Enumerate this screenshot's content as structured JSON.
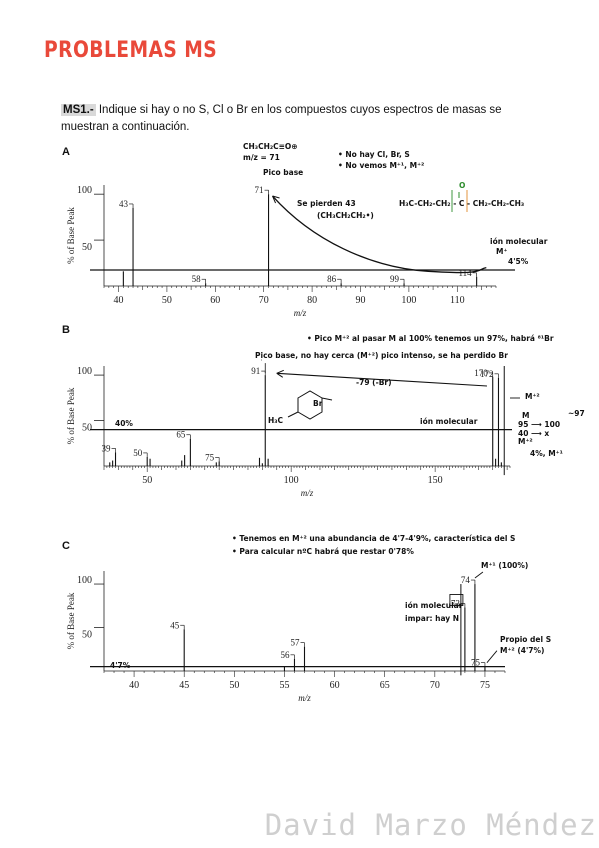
{
  "page": {
    "title": "PROBLEMAS MS",
    "exercise_tag": "MS1.-",
    "exercise_text": " Indique si hay o no S, Cl o Br en los compuestos cuyos espectros de masas se muestran a continuación.",
    "footer": "David Marzo Méndez"
  },
  "colors": {
    "title": "#e9493a",
    "annotation_green": "#2c8c2c",
    "footer": "#cfcfcf"
  },
  "annotations": {
    "A": {
      "formula": "CH₃CH₂C≡O⊕",
      "mz": "m/z = 71",
      "pico_base": "Pico base",
      "no_hay": "• No hay Cl, Br, S",
      "no_vemos": "• No vemos M⁺¹, M⁺²",
      "se_pierden": "Se pierden 43",
      "se_pierden_2": "(CH₃CH₂CH₂•)",
      "structure": "H₃C-CH₂-CH₂ - C - CH₂-CH₂-CH₃",
      "o_label": "O",
      "ion": "ión molecular",
      "M": "M⁺",
      "pct": "4'5%"
    },
    "B": {
      "top_note": "• Pico M⁺² al pasar M al 100% tenemos un 97%, habrá ⁸¹Br",
      "pico_base_note": "Pico base, no hay cerca (M⁺²) pico intenso, se ha perdido Br",
      "loss": "-79 (-Br)",
      "br": "Br",
      "h3c": "H₃C",
      "pct40": "40%",
      "ion": "ión molecular",
      "m2": "M⁺²",
      "calc1_l": "M",
      "calc1_r": "~97",
      "calc2_l": "95 ⟶ 100",
      "calc3_l": "40 ⟶ x",
      "m2b": "M⁺²",
      "m1": "4%, M⁺¹"
    },
    "C": {
      "note1": "• Tenemos en M⁺² una abundancia de 4'7-4'9%, característica del S",
      "note2": "• Para calcular nºC habrá que restar 0'78%",
      "mplus1": "M⁺¹ (100%)",
      "ion": "ión molecular",
      "impar": "impar: hay N",
      "propio": "Propio del S",
      "m2pct": "M⁺² (4'7%)",
      "pct47": "4'7%"
    }
  },
  "chart_data": [
    {
      "panel": "A",
      "type": "bar",
      "xlabel": "m/z",
      "ylabel": "% of Base Peak",
      "xlim": [
        37,
        118
      ],
      "ylim": [
        0,
        110
      ],
      "x_ticks": [
        40,
        50,
        60,
        70,
        80,
        90,
        100,
        110
      ],
      "y_ticks": [
        50,
        100
      ],
      "peaks": [
        {
          "x": 41,
          "y": 16
        },
        {
          "x": 43,
          "y": 85,
          "label": "43"
        },
        {
          "x": 58,
          "y": 3,
          "label": "58"
        },
        {
          "x": 71,
          "y": 100,
          "label": "71"
        },
        {
          "x": 86,
          "y": 3,
          "label": "86"
        },
        {
          "x": 99,
          "y": 3,
          "label": "99"
        },
        {
          "x": 114,
          "y": 10,
          "label": "114"
        }
      ]
    },
    {
      "panel": "B",
      "type": "bar",
      "xlabel": "m/z",
      "ylabel": "% of Base Peak",
      "xlim": [
        35,
        176
      ],
      "ylim": [
        0,
        110
      ],
      "x_ticks": [
        50,
        100,
        150
      ],
      "y_ticks": [
        50,
        100
      ],
      "peaks": [
        {
          "x": 37,
          "y": 4
        },
        {
          "x": 38,
          "y": 6
        },
        {
          "x": 39,
          "y": 15,
          "label": "39"
        },
        {
          "x": 50,
          "y": 10,
          "label": "50"
        },
        {
          "x": 51,
          "y": 8
        },
        {
          "x": 62,
          "y": 6
        },
        {
          "x": 63,
          "y": 12
        },
        {
          "x": 65,
          "y": 30,
          "label": "65"
        },
        {
          "x": 74,
          "y": 4
        },
        {
          "x": 75,
          "y": 5,
          "label": "75"
        },
        {
          "x": 89,
          "y": 9
        },
        {
          "x": 90,
          "y": 3
        },
        {
          "x": 91,
          "y": 100,
          "label": "91"
        },
        {
          "x": 92,
          "y": 8
        },
        {
          "x": 170,
          "y": 98,
          "label": "170"
        },
        {
          "x": 171,
          "y": 8
        },
        {
          "x": 172,
          "y": 97,
          "label": "172"
        },
        {
          "x": 173,
          "y": 4
        }
      ]
    },
    {
      "panel": "C",
      "type": "bar",
      "xlabel": "m/z",
      "ylabel": "% of Base Peak",
      "xlim": [
        37,
        77
      ],
      "ylim": [
        0,
        115
      ],
      "x_ticks": [
        40,
        45,
        50,
        55,
        60,
        65,
        70,
        75
      ],
      "y_ticks": [
        50,
        100
      ],
      "peaks": [
        {
          "x": 45,
          "y": 48,
          "label": "45"
        },
        {
          "x": 55,
          "y": 5
        },
        {
          "x": 56,
          "y": 14,
          "label": "56"
        },
        {
          "x": 57,
          "y": 28,
          "label": "57"
        },
        {
          "x": 73,
          "y": 73,
          "label": "73"
        },
        {
          "x": 74,
          "y": 100,
          "label": "74"
        },
        {
          "x": 75,
          "y": 5,
          "label": "75"
        }
      ]
    }
  ]
}
